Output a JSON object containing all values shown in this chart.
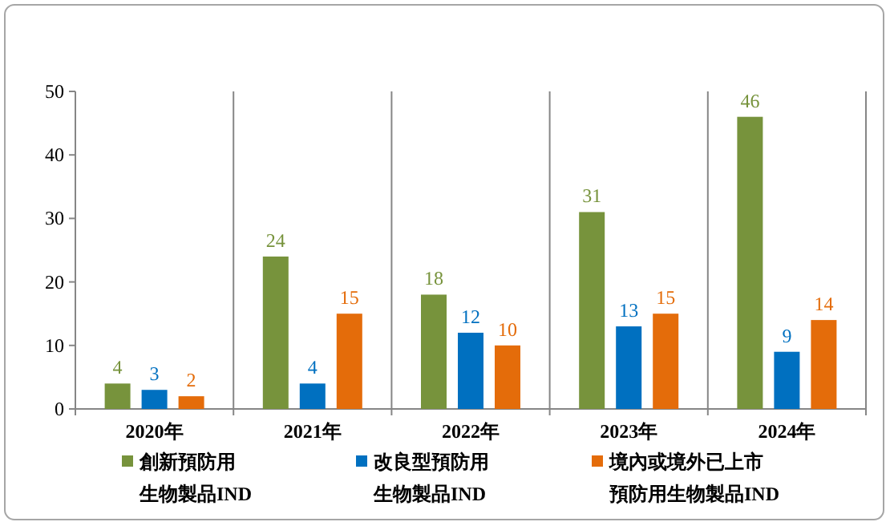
{
  "chart_data": {
    "type": "bar",
    "categories": [
      "2020年",
      "2021年",
      "2022年",
      "2023年",
      "2024年"
    ],
    "series": [
      {
        "name": "創新預防用生物製品IND",
        "color": "#77933c",
        "values": [
          4,
          24,
          18,
          31,
          46
        ]
      },
      {
        "name": "改良型預防用生物製品IND",
        "color": "#0070c0",
        "values": [
          3,
          4,
          12,
          13,
          9
        ]
      },
      {
        "name": "境內或境外已上市預防用生物製品IND",
        "color": "#e46c0a",
        "values": [
          2,
          15,
          10,
          15,
          14
        ]
      }
    ],
    "ylim": [
      0,
      50
    ],
    "yticks": [
      0,
      10,
      20,
      30,
      40,
      50
    ],
    "grid": "x",
    "legend": "bottom",
    "data_labels": true
  }
}
